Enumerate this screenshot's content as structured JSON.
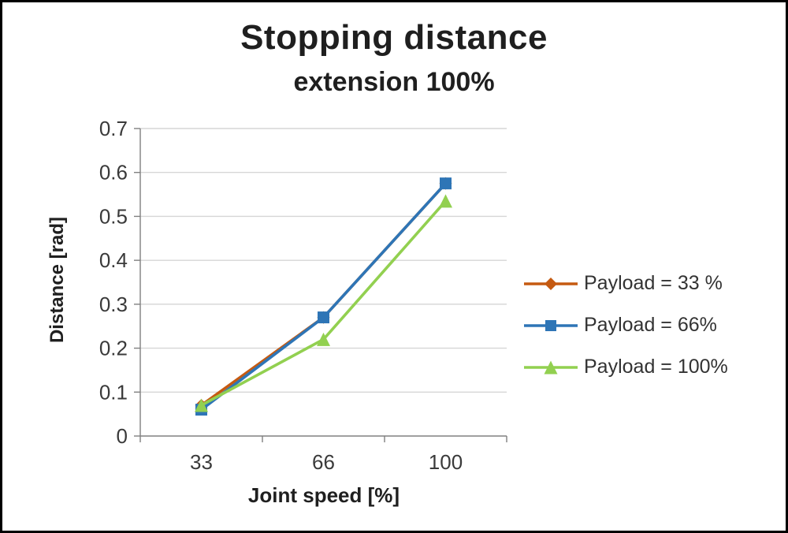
{
  "chart_data": {
    "type": "line",
    "title": "Stopping distance",
    "subtitle": "extension 100%",
    "xlabel": "Joint speed [%]",
    "ylabel": "Distance [rad]",
    "categories": [
      "33",
      "66",
      "100"
    ],
    "series": [
      {
        "name": "Payload = 33 %",
        "values": [
          0.07,
          0.27,
          0.575
        ],
        "color": "#C55A11",
        "marker": "diamond"
      },
      {
        "name": "Payload =  66%",
        "values": [
          0.06,
          0.27,
          0.575
        ],
        "color": "#2E75B6",
        "marker": "square"
      },
      {
        "name": "Payload =  100%",
        "values": [
          0.07,
          0.22,
          0.535
        ],
        "color": "#92D050",
        "marker": "triangle"
      }
    ],
    "ylim": [
      0,
      0.7
    ],
    "yticks": [
      "0",
      "0.1",
      "0.2",
      "0.3",
      "0.4",
      "0.5",
      "0.6",
      "0.7"
    ],
    "grid": true,
    "legend_position": "right",
    "colors": {
      "gridline": "#D6D6D6",
      "axis": "#808080",
      "tick_text": "#3A3A3A",
      "title_text": "#1F1F1F",
      "background": "#FFFFFF",
      "border": "#000000"
    }
  }
}
